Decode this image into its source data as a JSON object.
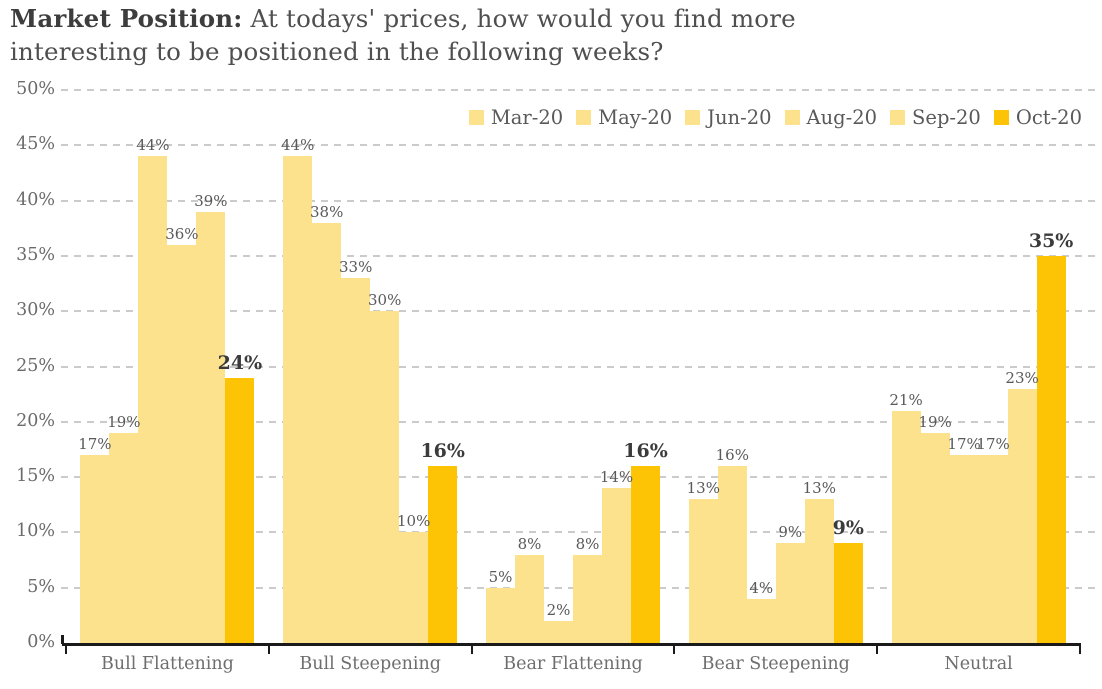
{
  "title": {
    "bold": "Market Position:",
    "rest_line1": " At todays' prices, how would you find more",
    "rest_line2": "interesting to be positioned in the following weeks?"
  },
  "chart_data": {
    "type": "bar",
    "title": "Market Position: At todays' prices, how would you find more interesting to be positioned in the following weeks?",
    "categories": [
      "Bull Flattening",
      "Bull Steepening",
      "Bear Flattening",
      "Bear Steepening",
      "Neutral"
    ],
    "series": [
      {
        "name": "Mar-20",
        "color": "#FCE28C",
        "values": [
          17,
          44,
          5,
          13,
          21
        ]
      },
      {
        "name": "May-20",
        "color": "#FCE28C",
        "values": [
          19,
          38,
          8,
          16,
          19
        ]
      },
      {
        "name": "Jun-20",
        "color": "#FCE28C",
        "values": [
          44,
          33,
          2,
          4,
          17
        ]
      },
      {
        "name": "Aug-20",
        "color": "#FCE28C",
        "values": [
          36,
          30,
          8,
          9,
          17
        ]
      },
      {
        "name": "Sep-20",
        "color": "#FCE28C",
        "values": [
          39,
          10,
          14,
          13,
          23
        ]
      },
      {
        "name": "Oct-20",
        "color": "#FCC404",
        "values": [
          24,
          16,
          16,
          9,
          35
        ],
        "accent": true
      }
    ],
    "value_label_suffix": "%",
    "xlabel": "",
    "ylabel": "",
    "ylim": [
      0,
      50
    ],
    "ytick_labels": [
      "0%",
      "5%",
      "10%",
      "15%",
      "20%",
      "25%",
      "30%",
      "35%",
      "40%",
      "45%",
      "50%"
    ],
    "grid": "horizontal-dashed",
    "legend_position": "top-right"
  },
  "colors": {
    "bar_light": "#FCE28C",
    "bar_accent": "#FCC404",
    "gridline": "#cbcbcb",
    "axis": "#1a1a1a",
    "title_text": "#3d3d3d",
    "label_text": "#595959"
  }
}
